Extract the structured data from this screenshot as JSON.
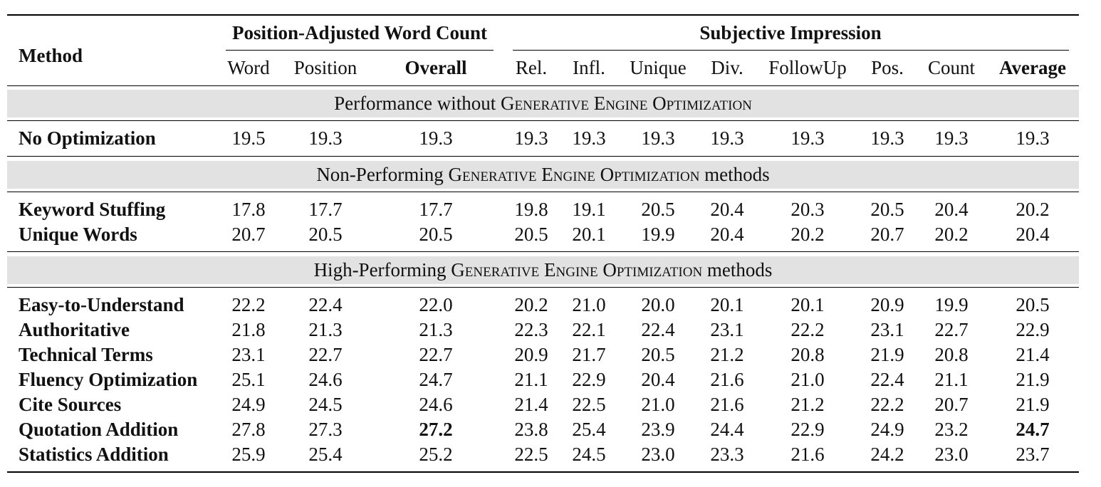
{
  "table": {
    "method_header": "Method",
    "groups": {
      "word_count": "Position-Adjusted Word Count",
      "subjective": "Subjective Impression"
    },
    "columns": [
      "Word",
      "Position",
      "Overall",
      "Rel.",
      "Infl.",
      "Unique",
      "Div.",
      "FollowUp",
      "Pos.",
      "Count",
      "Average"
    ],
    "sections": [
      {
        "title": "Performance without GENERATIVE ENGINE OPTIMIZATION",
        "rows": [
          {
            "method": "No Optimization",
            "values": [
              "19.5",
              "19.3",
              "19.3",
              "19.3",
              "19.3",
              "19.3",
              "19.3",
              "19.3",
              "19.3",
              "19.3",
              "19.3"
            ]
          }
        ]
      },
      {
        "title": "Non-Performing GENERATIVE ENGINE OPTIMIZATION methods",
        "rows": [
          {
            "method": "Keyword Stuffing",
            "values": [
              "17.8",
              "17.7",
              "17.7",
              "19.8",
              "19.1",
              "20.5",
              "20.4",
              "20.3",
              "20.5",
              "20.4",
              "20.2"
            ]
          },
          {
            "method": "Unique Words",
            "values": [
              "20.7",
              "20.5",
              "20.5",
              "20.5",
              "20.1",
              "19.9",
              "20.4",
              "20.2",
              "20.7",
              "20.2",
              "20.4"
            ]
          }
        ]
      },
      {
        "title": "High-Performing GENERATIVE ENGINE OPTIMIZATION methods",
        "rows": [
          {
            "method": "Easy-to-Understand",
            "values": [
              "22.2",
              "22.4",
              "22.0",
              "20.2",
              "21.0",
              "20.0",
              "20.1",
              "20.1",
              "20.9",
              "19.9",
              "20.5"
            ]
          },
          {
            "method": "Authoritative",
            "values": [
              "21.8",
              "21.3",
              "21.3",
              "22.3",
              "22.1",
              "22.4",
              "23.1",
              "22.2",
              "23.1",
              "22.7",
              "22.9"
            ]
          },
          {
            "method": "Technical Terms",
            "values": [
              "23.1",
              "22.7",
              "22.7",
              "20.9",
              "21.7",
              "20.5",
              "21.2",
              "20.8",
              "21.9",
              "20.8",
              "21.4"
            ]
          },
          {
            "method": "Fluency Optimization",
            "values": [
              "25.1",
              "24.6",
              "24.7",
              "21.1",
              "22.9",
              "20.4",
              "21.6",
              "21.0",
              "22.4",
              "21.1",
              "21.9"
            ]
          },
          {
            "method": "Cite Sources",
            "values": [
              "24.9",
              "24.5",
              "24.6",
              "21.4",
              "22.5",
              "21.0",
              "21.6",
              "21.2",
              "22.2",
              "20.7",
              "21.9"
            ]
          },
          {
            "method": "Quotation Addition",
            "values": [
              "27.8",
              "27.3",
              "27.2",
              "23.8",
              "25.4",
              "23.9",
              "24.4",
              "22.9",
              "24.9",
              "23.2",
              "24.7"
            ]
          },
          {
            "method": "Statistics Addition",
            "values": [
              "25.9",
              "25.4",
              "25.2",
              "22.5",
              "24.5",
              "23.0",
              "23.3",
              "21.6",
              "24.2",
              "23.0",
              "23.7"
            ]
          }
        ]
      }
    ]
  }
}
